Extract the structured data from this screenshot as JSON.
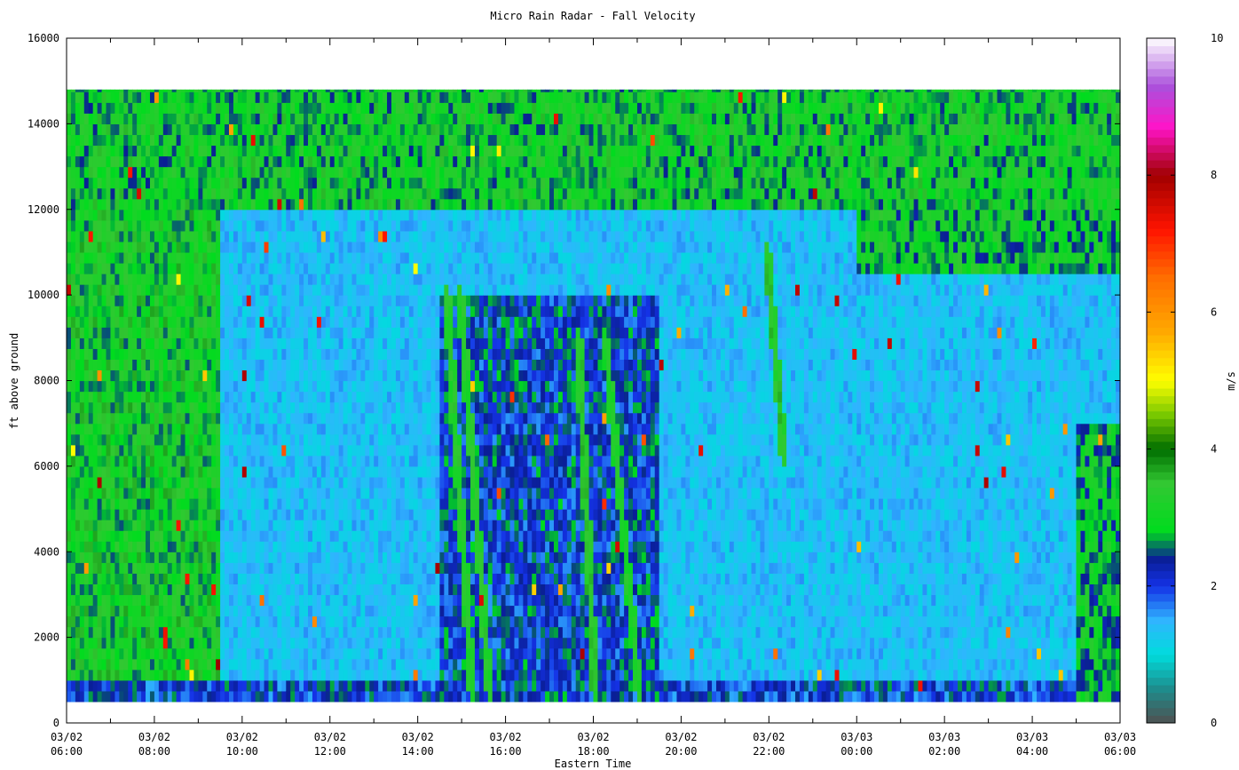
{
  "chart_data": {
    "type": "heatmap",
    "title": "Micro Rain Radar - Fall Velocity",
    "xlabel": "Eastern Time",
    "ylabel": "ft above ground",
    "colorbar_label": "m/s",
    "x_ticks": [
      {
        "top": "03/02",
        "bottom": "06:00"
      },
      {
        "top": "03/02",
        "bottom": "08:00"
      },
      {
        "top": "03/02",
        "bottom": "10:00"
      },
      {
        "top": "03/02",
        "bottom": "12:00"
      },
      {
        "top": "03/02",
        "bottom": "14:00"
      },
      {
        "top": "03/02",
        "bottom": "16:00"
      },
      {
        "top": "03/02",
        "bottom": "18:00"
      },
      {
        "top": "03/02",
        "bottom": "20:00"
      },
      {
        "top": "03/02",
        "bottom": "22:00"
      },
      {
        "top": "03/03",
        "bottom": "00:00"
      },
      {
        "top": "03/03",
        "bottom": "02:00"
      },
      {
        "top": "03/03",
        "bottom": "04:00"
      },
      {
        "top": "03/03",
        "bottom": "06:00"
      }
    ],
    "x_range_hours": [
      0,
      24
    ],
    "y_ticks": [
      0,
      2000,
      4000,
      6000,
      8000,
      10000,
      12000,
      14000,
      16000
    ],
    "ylim": [
      0,
      16000
    ],
    "data_height_range": [
      500,
      14800
    ],
    "colorbar_ticks": [
      0,
      2,
      4,
      6,
      8,
      10
    ],
    "colorbar_range": [
      0,
      10
    ],
    "colormap": [
      {
        "v": 0.0,
        "c": "#505050"
      },
      {
        "v": 0.5,
        "c": "#1e8c8c"
      },
      {
        "v": 1.0,
        "c": "#00dcdc"
      },
      {
        "v": 1.5,
        "c": "#30b4ff"
      },
      {
        "v": 2.0,
        "c": "#1432e6"
      },
      {
        "v": 2.4,
        "c": "#0a1e96"
      },
      {
        "v": 2.8,
        "c": "#00dc1e"
      },
      {
        "v": 3.5,
        "c": "#32c832"
      },
      {
        "v": 4.0,
        "c": "#006e00"
      },
      {
        "v": 4.5,
        "c": "#78c800"
      },
      {
        "v": 5.0,
        "c": "#ffff00"
      },
      {
        "v": 5.7,
        "c": "#ffaa00"
      },
      {
        "v": 6.5,
        "c": "#ff6e00"
      },
      {
        "v": 7.2,
        "c": "#ff1400"
      },
      {
        "v": 8.0,
        "c": "#a00000"
      },
      {
        "v": 8.7,
        "c": "#ff14c8"
      },
      {
        "v": 9.3,
        "c": "#aa50dc"
      },
      {
        "v": 10.0,
        "c": "#ffffff"
      }
    ],
    "regions": [
      {
        "name": "upper-snow",
        "from_hour": 0,
        "to_hour": 24,
        "from_ft": 12000,
        "to_ft": 14800,
        "value": 3.0
      },
      {
        "name": "morning-snow",
        "from_hour": 0,
        "to_hour": 3.5,
        "from_ft": 500,
        "to_ft": 12000,
        "value": 3.1
      },
      {
        "name": "night-snow",
        "from_hour": 18,
        "to_hour": 24,
        "from_ft": 10500,
        "to_ft": 12000,
        "value": 2.9
      },
      {
        "name": "near-surface",
        "from_hour": 0,
        "to_hour": 24,
        "from_ft": 500,
        "to_ft": 1000,
        "value": 2.1
      },
      {
        "name": "afternoon-streaks",
        "from_hour": 8.5,
        "to_hour": 13.5,
        "from_ft": 500,
        "to_ft": 10000,
        "value": 2.2
      },
      {
        "name": "late-ramp",
        "from_hour": 23,
        "to_hour": 24,
        "from_ft": 500,
        "to_ft": 7000,
        "value": 2.8
      }
    ],
    "streaks": [
      {
        "start_hour": 8.6,
        "start_ft": 10000,
        "end_hour": 9.2,
        "end_ft": 500,
        "value": 3.3
      },
      {
        "start_hour": 8.9,
        "start_ft": 10000,
        "end_hour": 9.6,
        "end_ft": 500,
        "value": 3.3
      },
      {
        "start_hour": 11.6,
        "start_ft": 9000,
        "end_hour": 12.0,
        "end_ft": 500,
        "value": 3.4
      },
      {
        "start_hour": 12.2,
        "start_ft": 9000,
        "end_hour": 13.0,
        "end_ft": 500,
        "value": 3.2
      },
      {
        "start_hour": 15.9,
        "start_ft": 11000,
        "end_hour": 16.3,
        "end_ft": 6000,
        "value": 3.4
      }
    ]
  }
}
